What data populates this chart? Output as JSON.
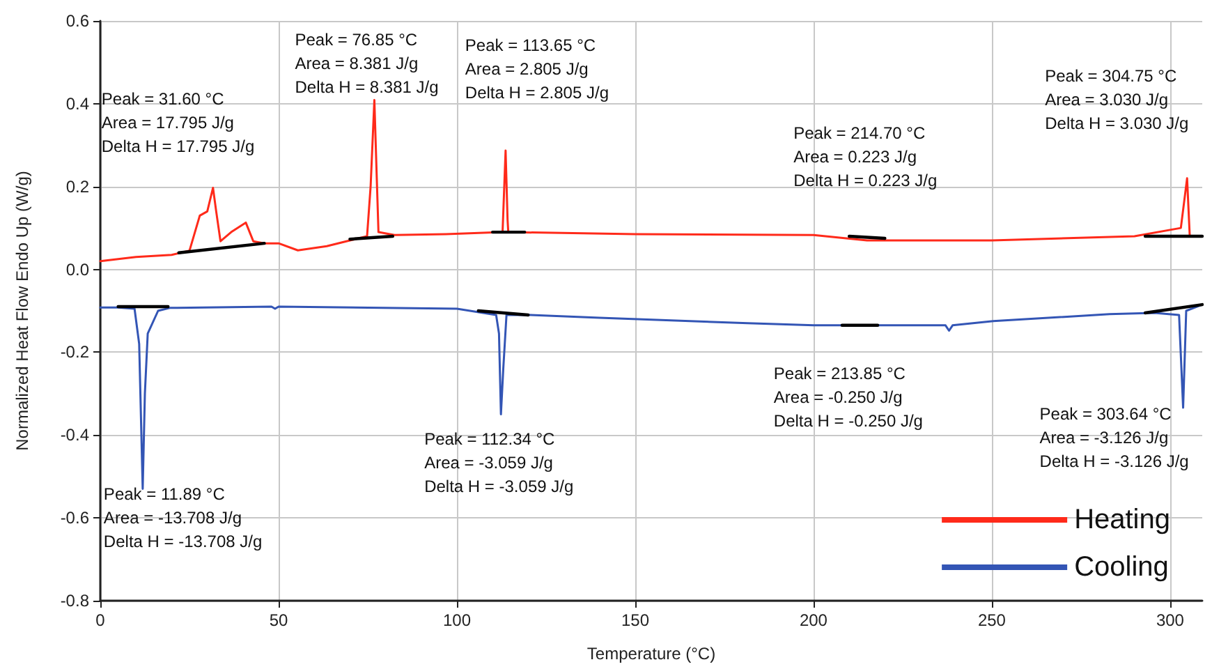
{
  "chart_data": {
    "type": "line",
    "xlabel": "Temperature (°C)",
    "ylabel": "Normalized Heat Flow Endo Up (W/g)",
    "xlim": [
      0,
      309
    ],
    "xticks": [
      0,
      50,
      100,
      150,
      200,
      250,
      300
    ],
    "ylim": [
      -0.8,
      0.6
    ],
    "yticks": [
      -0.8,
      -0.6,
      -0.4,
      -0.2,
      {
        "value": 0,
        "label": "0.0"
      },
      0.2,
      0.4,
      0.6
    ],
    "grid": true,
    "legend": "bottom right",
    "marker": "none",
    "line_style": "solid",
    "series": [
      {
        "name": "Heating",
        "color": "#ff2a1a",
        "x": [
          0,
          10,
          20,
          25,
          27.9,
          30,
          31.6,
          32.5,
          33.7,
          36.7,
          40.8,
          42.9,
          46,
          50,
          55.4,
          63.5,
          70,
          74.8,
          75.8,
          76.85,
          77.6,
          78,
          82.5,
          96.9,
          112.8,
          113.65,
          114.2,
          114.4,
          150,
          200,
          215,
          250,
          290,
          303,
          304.75,
          305.5
        ],
        "values": [
          0.02,
          0.03,
          0.035,
          0.045,
          0.13,
          0.14,
          0.197,
          0.14,
          0.068,
          0.09,
          0.113,
          0.068,
          0.063,
          0.063,
          0.046,
          0.056,
          0.07,
          0.08,
          0.2,
          0.409,
          0.2,
          0.09,
          0.083,
          0.085,
          0.09,
          0.287,
          0.12,
          0.09,
          0.085,
          0.083,
          0.07,
          0.07,
          0.08,
          0.1,
          0.22,
          0.08
        ]
      },
      {
        "name": "Cooling",
        "color": "#3355b5",
        "x": [
          0,
          5,
          9.6,
          10.9,
          11.89,
          12.5,
          13.3,
          16.2,
          19.5,
          48,
          49,
          50,
          100,
          111,
          111.8,
          112.34,
          113,
          113.9,
          120.5,
          140,
          181.5,
          200,
          230,
          237,
          238,
          239,
          250.4,
          283,
          295.6,
          302.5,
          303.64,
          304.5,
          309
        ],
        "values": [
          -0.092,
          -0.092,
          -0.095,
          -0.18,
          -0.53,
          -0.3,
          -0.155,
          -0.1,
          -0.093,
          -0.09,
          -0.095,
          -0.09,
          -0.095,
          -0.11,
          -0.155,
          -0.35,
          -0.24,
          -0.11,
          -0.11,
          -0.117,
          -0.13,
          -0.135,
          -0.135,
          -0.135,
          -0.148,
          -0.135,
          -0.125,
          -0.108,
          -0.105,
          -0.11,
          -0.334,
          -0.1,
          -0.085
        ]
      },
      {
        "color": "#000000",
        "x": [
          22,
          46
        ],
        "values": [
          0.04,
          0.063
        ]
      },
      {
        "color": "#000000",
        "x": [
          70,
          82
        ],
        "values": [
          0.073,
          0.08
        ]
      },
      {
        "color": "#000000",
        "x": [
          110,
          119
        ],
        "values": [
          0.09,
          0.09
        ]
      },
      {
        "color": "#000000",
        "x": [
          210,
          220
        ],
        "values": [
          0.08,
          0.075
        ]
      },
      {
        "color": "#000000",
        "x": [
          293,
          309
        ],
        "values": [
          0.08,
          0.08
        ]
      },
      {
        "color": "#000000",
        "x": [
          5,
          19
        ],
        "values": [
          -0.09,
          -0.09
        ]
      },
      {
        "color": "#000000",
        "x": [
          106,
          120
        ],
        "values": [
          -0.1,
          -0.11
        ]
      },
      {
        "color": "#000000",
        "x": [
          208,
          218
        ],
        "values": [
          -0.135,
          -0.135
        ]
      },
      {
        "color": "#000000",
        "x": [
          293,
          309
        ],
        "values": [
          -0.105,
          -0.085
        ]
      }
    ],
    "annotations": [
      {
        "text": "Peak = 31.60 °C\nArea = 17.795 J/g\nDelta H = 17.795 J/g",
        "x": 31.6,
        "y": 0.197
      },
      {
        "text": "Peak = 76.85 °C\nArea = 8.381 J/g\nDelta H = 8.381 J/g",
        "x": 76.85,
        "y": 0.409
      },
      {
        "text": "Peak = 113.65 °C\nArea = 2.805 J/g\nDelta H = 2.805 J/g",
        "x": 113.65,
        "y": 0.287
      },
      {
        "text": "Peak = 214.70 °C\nArea = 0.223 J/g\nDelta H = 0.223 J/g",
        "x": 214.7,
        "y": 0.075
      },
      {
        "text": "Peak = 304.75 °C\nArea = 3.030 J/g\nDelta H = 3.030 J/g",
        "x": 304.75,
        "y": 0.22
      },
      {
        "text": "Peak = 11.89 °C\nArea = -13.708 J/g\nDelta H = -13.708 J/g",
        "x": 11.89,
        "y": -0.53
      },
      {
        "text": "Peak = 112.34 °C\nArea = -3.059 J/g\nDelta H = -3.059 J/g",
        "x": 112.34,
        "y": -0.35
      },
      {
        "text": "Peak = 213.85 °C\nArea = -0.250 J/g\nDelta H = -0.250 J/g",
        "x": 213.85,
        "y": -0.135
      },
      {
        "text": "Peak = 303.64 °C\nArea = -3.126 J/g\nDelta H = -3.126 J/g",
        "x": 303.64,
        "y": -0.334
      }
    ]
  }
}
